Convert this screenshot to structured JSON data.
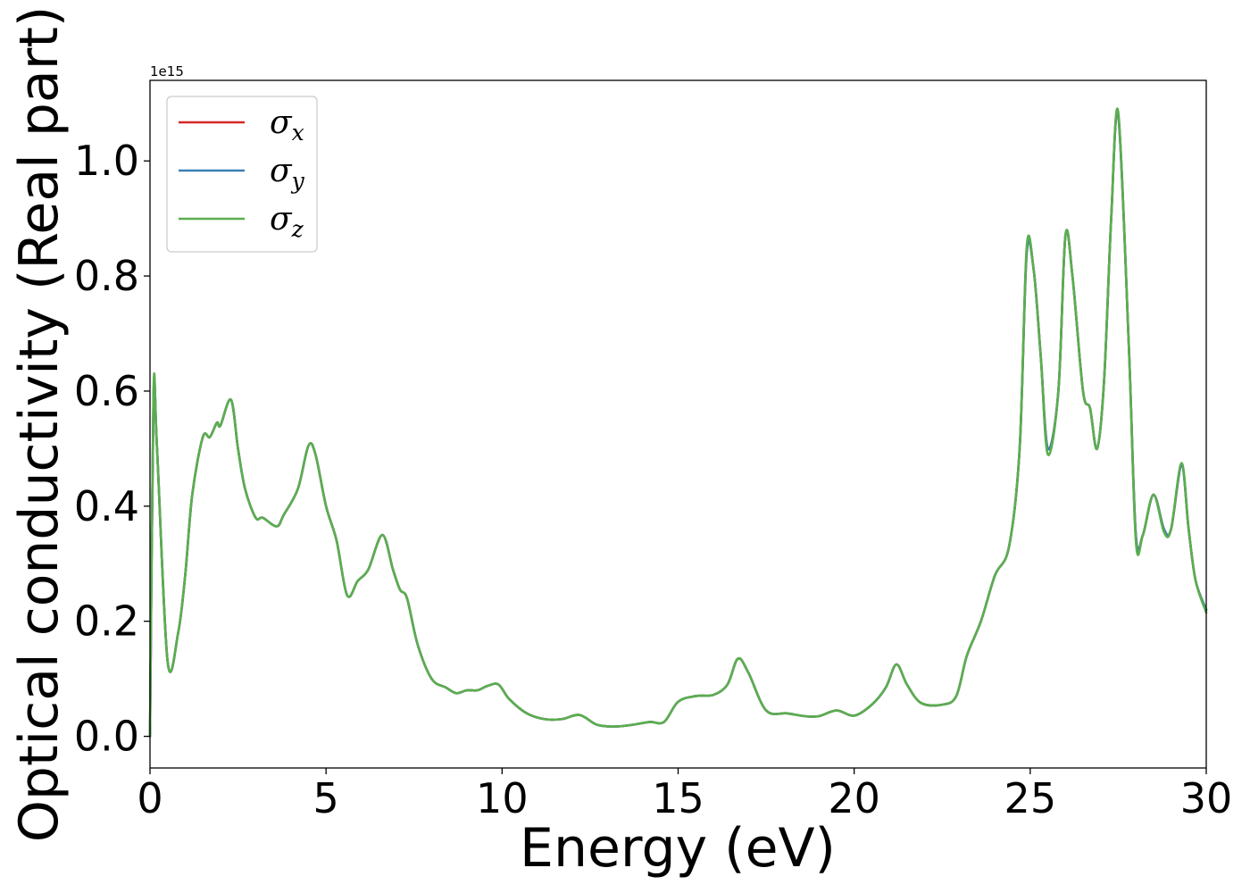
{
  "chart_data": {
    "type": "line",
    "title": "",
    "xlabel": "Energy (eV)",
    "ylabel": "Optical conductivity (Real part)",
    "y_offset_text": "1e15",
    "xlim": [
      0,
      30
    ],
    "ylim": [
      -0.055,
      1.14
    ],
    "x_ticks": [
      0,
      5,
      10,
      15,
      20,
      25,
      30
    ],
    "y_ticks": [
      0.0,
      0.2,
      0.4,
      0.6,
      0.8,
      1.0
    ],
    "x_tick_labels": [
      "0",
      "5",
      "10",
      "15",
      "20",
      "25",
      "30"
    ],
    "y_tick_labels": [
      "0.0",
      "0.2",
      "0.4",
      "0.6",
      "0.8",
      "1.0"
    ],
    "grid": false,
    "legend_position": "top-left",
    "colors": {
      "sigma_x": "#d62728",
      "sigma_y": "#3a7fb5",
      "sigma_z": "#5aae4e"
    },
    "series": [
      {
        "name": "σx",
        "symbol": "σ",
        "subscript": "x",
        "color": "#d62728",
        "x": [
          0,
          0.1,
          0.2,
          0.5,
          0.8,
          1.0,
          1.2,
          1.5,
          1.7,
          1.9,
          2.0,
          2.3,
          2.5,
          2.7,
          3.0,
          3.2,
          3.6,
          3.8,
          4.2,
          4.5,
          4.7,
          5.0,
          5.3,
          5.6,
          5.9,
          6.2,
          6.6,
          6.9,
          7.1,
          7.3,
          7.6,
          8.0,
          8.4,
          8.7,
          9.0,
          9.3,
          9.6,
          9.9,
          10.2,
          10.7,
          11.2,
          11.7,
          12.2,
          12.7,
          13.2,
          13.7,
          14.2,
          14.6,
          15.0,
          15.5,
          16.0,
          16.4,
          16.7,
          17.0,
          17.5,
          18.1,
          18.6,
          19.0,
          19.5,
          20.0,
          20.5,
          20.9,
          21.2,
          21.5,
          21.9,
          22.5,
          22.9,
          23.2,
          23.6,
          24.0,
          24.4,
          24.7,
          24.9,
          25.1,
          25.3,
          25.5,
          25.8,
          26.0,
          26.2,
          26.5,
          26.7,
          26.9,
          27.1,
          27.3,
          27.5,
          27.8,
          28.0,
          28.2,
          28.5,
          28.8,
          29.0,
          29.3,
          29.5,
          29.7,
          30.0
        ],
        "y": [
          0.0,
          0.59,
          0.5,
          0.13,
          0.18,
          0.28,
          0.42,
          0.52,
          0.52,
          0.545,
          0.54,
          0.585,
          0.5,
          0.43,
          0.38,
          0.38,
          0.365,
          0.385,
          0.43,
          0.505,
          0.49,
          0.4,
          0.34,
          0.245,
          0.27,
          0.29,
          0.35,
          0.29,
          0.255,
          0.24,
          0.16,
          0.1,
          0.085,
          0.075,
          0.08,
          0.08,
          0.088,
          0.09,
          0.065,
          0.04,
          0.03,
          0.03,
          0.037,
          0.02,
          0.017,
          0.02,
          0.025,
          0.025,
          0.06,
          0.07,
          0.072,
          0.09,
          0.135,
          0.11,
          0.045,
          0.04,
          0.035,
          0.035,
          0.045,
          0.036,
          0.055,
          0.085,
          0.125,
          0.09,
          0.058,
          0.055,
          0.07,
          0.14,
          0.2,
          0.28,
          0.33,
          0.5,
          0.84,
          0.81,
          0.66,
          0.5,
          0.6,
          0.87,
          0.8,
          0.6,
          0.57,
          0.5,
          0.62,
          0.9,
          1.08,
          0.68,
          0.35,
          0.35,
          0.42,
          0.36,
          0.36,
          0.47,
          0.36,
          0.27,
          0.22
        ]
      },
      {
        "name": "σy",
        "symbol": "σ",
        "subscript": "y",
        "color": "#3a7fb5",
        "x": [
          0,
          0.1,
          0.2,
          0.5,
          0.8,
          1.0,
          1.2,
          1.5,
          1.7,
          1.9,
          2.0,
          2.3,
          2.5,
          2.7,
          3.0,
          3.2,
          3.6,
          3.8,
          4.2,
          4.5,
          4.7,
          5.0,
          5.3,
          5.6,
          5.9,
          6.2,
          6.6,
          6.9,
          7.1,
          7.3,
          7.6,
          8.0,
          8.4,
          8.7,
          9.0,
          9.3,
          9.6,
          9.9,
          10.2,
          10.7,
          11.2,
          11.7,
          12.2,
          12.7,
          13.2,
          13.7,
          14.2,
          14.6,
          15.0,
          15.5,
          16.0,
          16.4,
          16.7,
          17.0,
          17.5,
          18.1,
          18.6,
          19.0,
          19.5,
          20.0,
          20.5,
          20.9,
          21.2,
          21.5,
          21.9,
          22.5,
          22.9,
          23.2,
          23.6,
          24.0,
          24.4,
          24.7,
          24.9,
          25.1,
          25.3,
          25.5,
          25.8,
          26.0,
          26.2,
          26.5,
          26.7,
          26.9,
          27.1,
          27.3,
          27.5,
          27.8,
          28.0,
          28.2,
          28.5,
          28.8,
          29.0,
          29.3,
          29.5,
          29.7,
          30.0
        ],
        "y": [
          0.0,
          0.59,
          0.5,
          0.13,
          0.18,
          0.28,
          0.42,
          0.52,
          0.52,
          0.545,
          0.54,
          0.585,
          0.5,
          0.43,
          0.38,
          0.38,
          0.365,
          0.385,
          0.43,
          0.505,
          0.49,
          0.4,
          0.34,
          0.245,
          0.27,
          0.29,
          0.35,
          0.29,
          0.255,
          0.24,
          0.16,
          0.1,
          0.085,
          0.075,
          0.08,
          0.08,
          0.088,
          0.09,
          0.065,
          0.04,
          0.03,
          0.03,
          0.037,
          0.02,
          0.017,
          0.02,
          0.025,
          0.025,
          0.06,
          0.07,
          0.072,
          0.09,
          0.135,
          0.11,
          0.045,
          0.04,
          0.035,
          0.035,
          0.045,
          0.036,
          0.055,
          0.085,
          0.125,
          0.09,
          0.058,
          0.055,
          0.07,
          0.14,
          0.2,
          0.28,
          0.33,
          0.5,
          0.84,
          0.81,
          0.66,
          0.5,
          0.6,
          0.87,
          0.8,
          0.6,
          0.57,
          0.5,
          0.62,
          0.9,
          1.08,
          0.68,
          0.35,
          0.35,
          0.42,
          0.36,
          0.36,
          0.47,
          0.36,
          0.27,
          0.22
        ]
      },
      {
        "name": "σz",
        "symbol": "σ",
        "subscript": "z",
        "color": "#5aae4e",
        "x": [
          0,
          0.1,
          0.2,
          0.5,
          0.8,
          1.0,
          1.2,
          1.5,
          1.7,
          1.9,
          2.0,
          2.3,
          2.5,
          2.7,
          3.0,
          3.2,
          3.6,
          3.8,
          4.2,
          4.5,
          4.7,
          5.0,
          5.3,
          5.6,
          5.9,
          6.2,
          6.6,
          6.9,
          7.1,
          7.3,
          7.6,
          8.0,
          8.4,
          8.7,
          9.0,
          9.3,
          9.6,
          9.9,
          10.2,
          10.7,
          11.2,
          11.7,
          12.2,
          12.7,
          13.2,
          13.7,
          14.2,
          14.6,
          15.0,
          15.5,
          16.0,
          16.4,
          16.7,
          17.0,
          17.5,
          18.1,
          18.6,
          19.0,
          19.5,
          20.0,
          20.5,
          20.9,
          21.2,
          21.5,
          21.9,
          22.5,
          22.9,
          23.2,
          23.6,
          24.0,
          24.4,
          24.7,
          24.9,
          25.1,
          25.3,
          25.5,
          25.8,
          26.0,
          26.2,
          26.5,
          26.7,
          26.9,
          27.1,
          27.3,
          27.5,
          27.8,
          28.0,
          28.2,
          28.5,
          28.8,
          29.0,
          29.3,
          29.5,
          29.7,
          30.0
        ],
        "y": [
          0.0,
          0.6,
          0.5,
          0.13,
          0.18,
          0.28,
          0.42,
          0.52,
          0.52,
          0.545,
          0.54,
          0.585,
          0.5,
          0.43,
          0.38,
          0.38,
          0.365,
          0.385,
          0.43,
          0.505,
          0.49,
          0.4,
          0.34,
          0.245,
          0.27,
          0.29,
          0.35,
          0.29,
          0.255,
          0.24,
          0.16,
          0.1,
          0.085,
          0.075,
          0.08,
          0.08,
          0.088,
          0.09,
          0.065,
          0.04,
          0.03,
          0.03,
          0.037,
          0.02,
          0.017,
          0.02,
          0.025,
          0.025,
          0.06,
          0.07,
          0.072,
          0.09,
          0.135,
          0.11,
          0.045,
          0.04,
          0.035,
          0.035,
          0.045,
          0.036,
          0.055,
          0.085,
          0.125,
          0.09,
          0.058,
          0.055,
          0.07,
          0.14,
          0.2,
          0.28,
          0.33,
          0.5,
          0.85,
          0.81,
          0.66,
          0.49,
          0.6,
          0.87,
          0.8,
          0.6,
          0.57,
          0.5,
          0.62,
          0.9,
          1.085,
          0.68,
          0.34,
          0.35,
          0.42,
          0.355,
          0.36,
          0.475,
          0.36,
          0.27,
          0.215
        ]
      }
    ]
  }
}
